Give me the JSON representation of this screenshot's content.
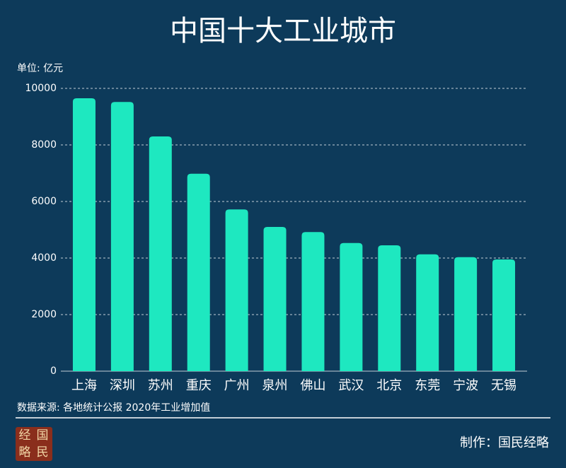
{
  "chart_data": {
    "type": "bar",
    "title": "中国十大工业城市",
    "y_label": "单位: 亿元",
    "categories": [
      "上海",
      "深圳",
      "苏州",
      "重庆",
      "广州",
      "泉州",
      "佛山",
      "武汉",
      "北京",
      "东莞",
      "宁波",
      "无锡"
    ],
    "values": [
      9650,
      9520,
      8300,
      6980,
      5720,
      5100,
      4920,
      4530,
      4450,
      4130,
      4030,
      3950
    ],
    "color": "#1ee8c0",
    "ylim": [
      0,
      10000
    ],
    "yticks": [
      0,
      2000,
      4000,
      6000,
      8000,
      10000
    ],
    "grid": true
  },
  "footer": {
    "source": "数据来源: 各地统计公报  2020年工业增加值",
    "credit": "制作：国民经略",
    "logo": [
      "经",
      "国",
      "略",
      "民"
    ]
  }
}
